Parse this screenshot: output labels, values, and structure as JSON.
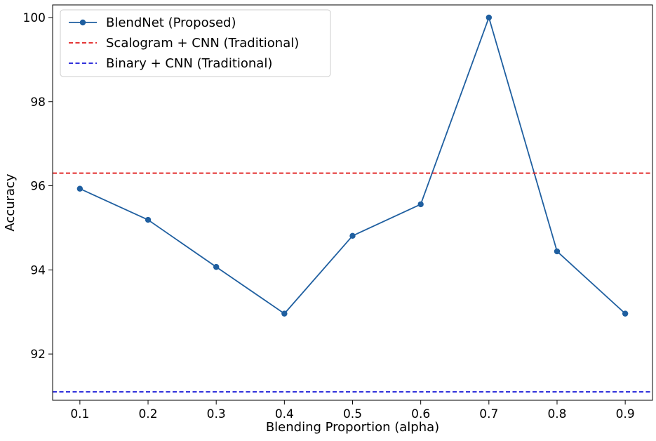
{
  "chart_data": {
    "type": "line",
    "title": "",
    "xlabel": "Blending Proportion (alpha)",
    "ylabel": "Accuracy",
    "xlim": [
      0.06,
      0.94
    ],
    "ylim": [
      90.9,
      100.3
    ],
    "x_ticks": [
      0.1,
      0.2,
      0.3,
      0.4,
      0.5,
      0.6,
      0.7,
      0.8,
      0.9
    ],
    "x_tick_labels": [
      "0.1",
      "0.2",
      "0.3",
      "0.4",
      "0.5",
      "0.6",
      "0.7",
      "0.8",
      "0.9"
    ],
    "y_ticks": [
      92,
      94,
      96,
      98,
      100
    ],
    "y_tick_labels": [
      "92",
      "94",
      "96",
      "98",
      "100"
    ],
    "grid": false,
    "legend_position": "top-left",
    "series": [
      {
        "name": "BlendNet (Proposed)",
        "style": "solid-with-markers",
        "color": "#1f5fa0",
        "x": [
          0.1,
          0.2,
          0.3,
          0.4,
          0.5,
          0.6,
          0.7,
          0.8,
          0.9
        ],
        "y": [
          95.93,
          95.19,
          94.07,
          92.96,
          94.81,
          95.56,
          100.0,
          94.44,
          92.96
        ]
      },
      {
        "name": "Scalogram + CNN (Traditional)",
        "style": "dashed-horizontal",
        "color": "#e01b1b",
        "value": 96.3
      },
      {
        "name": "Binary + CNN (Traditional)",
        "style": "dashed-horizontal",
        "color": "#1515d6",
        "value": 91.1
      }
    ]
  }
}
